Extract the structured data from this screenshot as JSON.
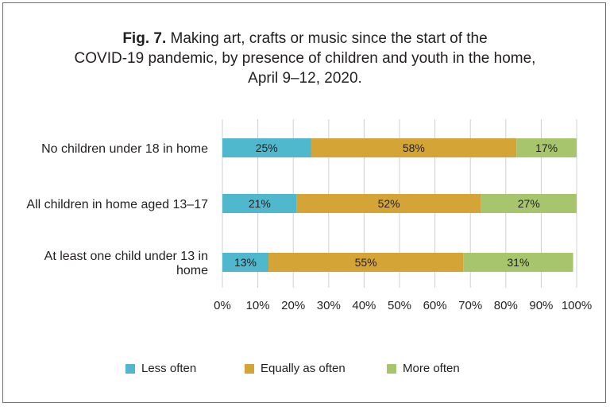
{
  "figure": {
    "title_prefix": "Fig. 7.",
    "title_line1": "Making art, crafts or music since the start of the",
    "title_line2": "COVID-19 pandemic, by presence of children and youth in the home,",
    "title_line3": "April 9–12, 2020."
  },
  "colors": {
    "less_often": "#4fb8cc",
    "equally_as_often": "#d4a536",
    "more_often": "#a7c56c"
  },
  "chart_data": {
    "type": "bar",
    "orientation": "horizontal",
    "stacked": true,
    "categories": [
      "No children under 18 in home",
      "All children in home aged 13–17",
      "At least one child under 13 in home"
    ],
    "series": [
      {
        "name": "Less often",
        "values": [
          25,
          21,
          13
        ],
        "labels": [
          "25%",
          "21%",
          "13%"
        ],
        "color": "#4fb8cc"
      },
      {
        "name": "Equally as often",
        "values": [
          58,
          52,
          55
        ],
        "labels": [
          "58%",
          "52%",
          "55%"
        ],
        "color": "#d4a536"
      },
      {
        "name": "More often",
        "values": [
          17,
          27,
          31
        ],
        "labels": [
          "17%",
          "27%",
          "31%"
        ],
        "color": "#a7c56c"
      }
    ],
    "xlim": [
      0,
      100
    ],
    "xticks": [
      "0%",
      "10%",
      "20%",
      "30%",
      "40%",
      "50%",
      "60%",
      "70%",
      "80%",
      "90%",
      "100%"
    ],
    "grid": "vertical",
    "legend_position": "bottom"
  }
}
